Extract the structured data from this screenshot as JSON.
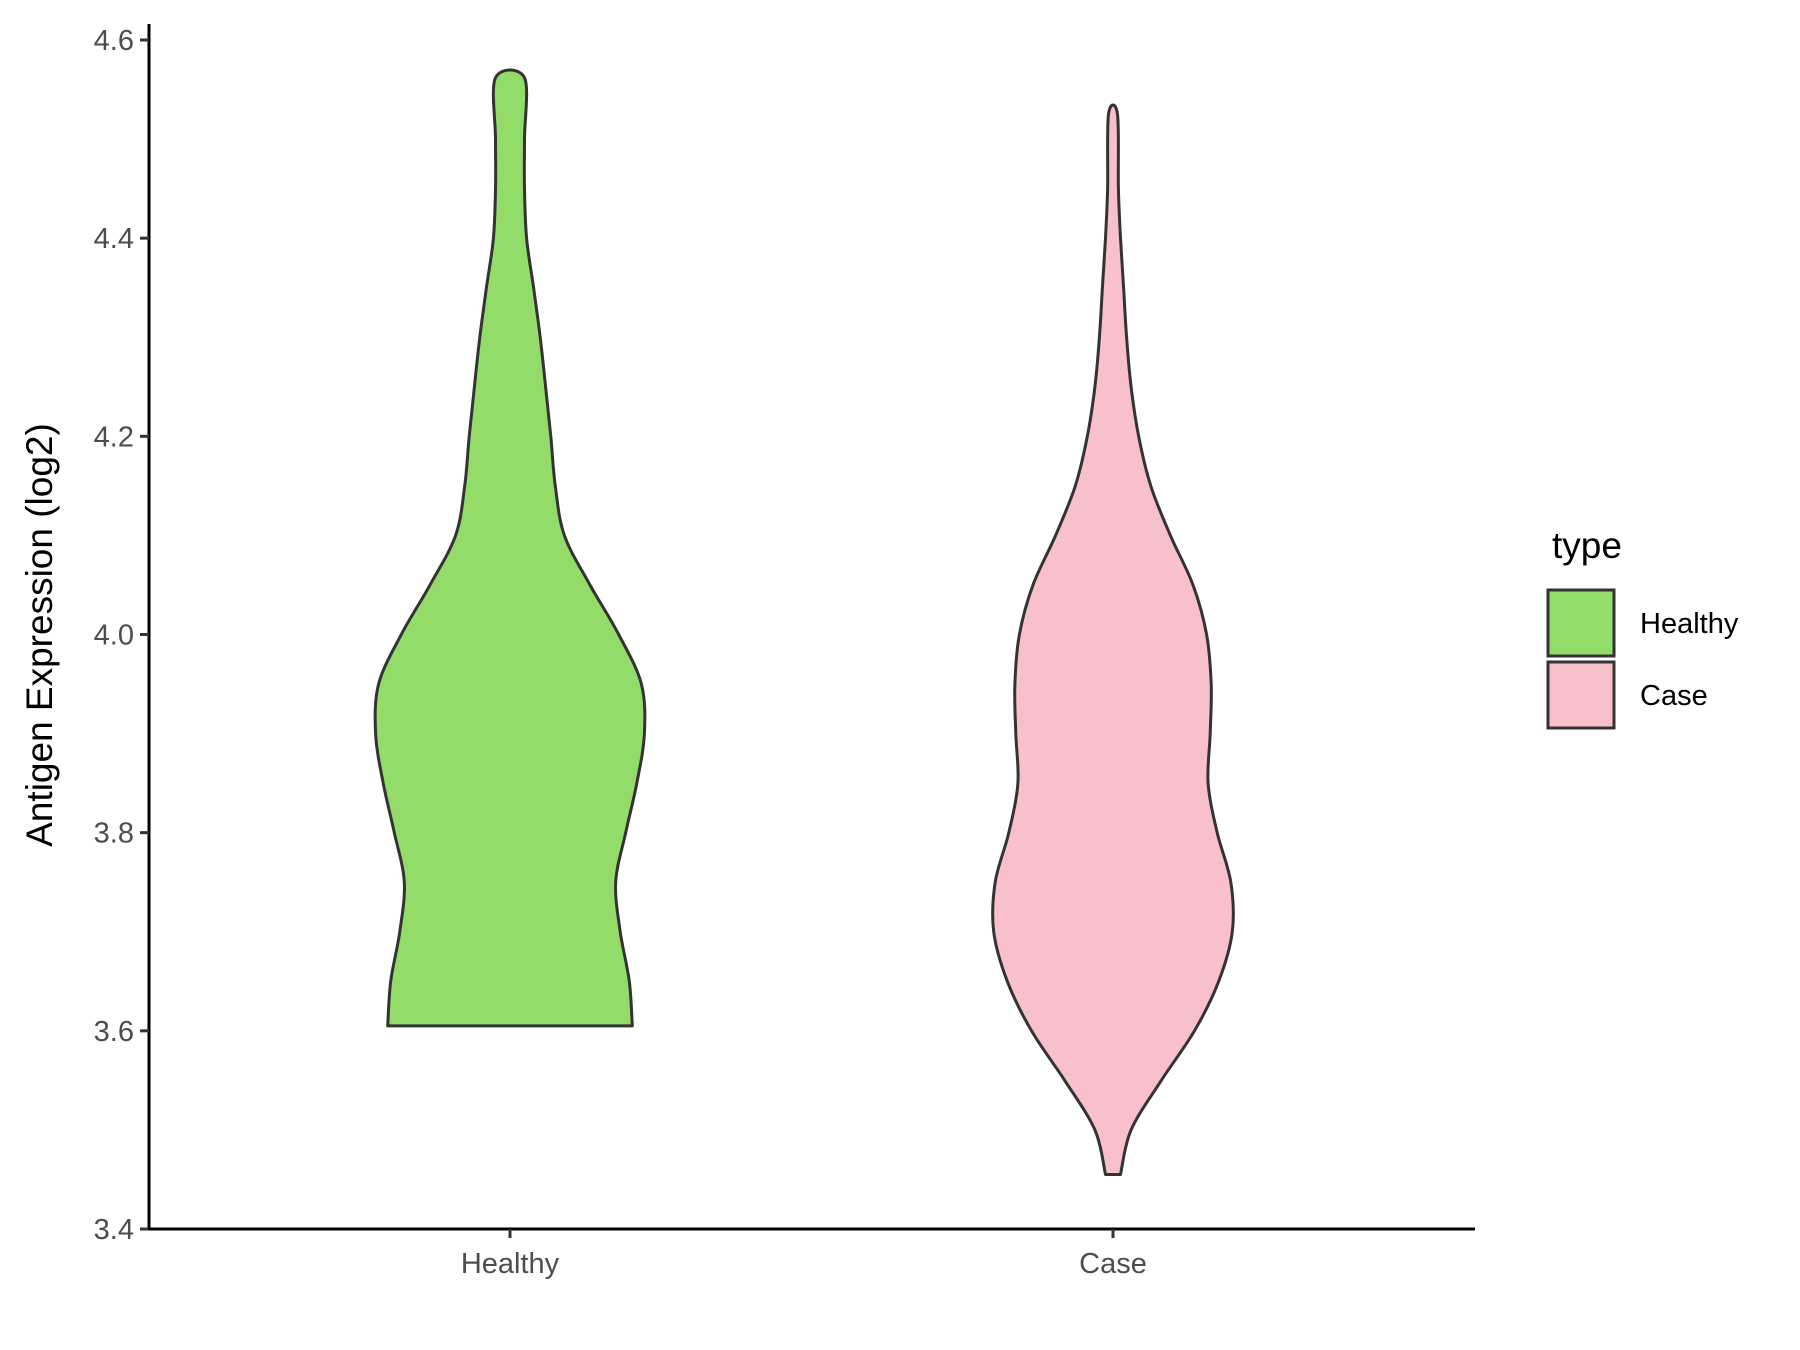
{
  "chart_data": {
    "type": "violin",
    "title": "",
    "xlabel": "",
    "ylabel": "Antigen Expression (log2)",
    "ylim": [
      3.4,
      4.6
    ],
    "yticks": [
      3.4,
      3.6,
      3.8,
      4.0,
      4.2,
      4.4,
      4.6
    ],
    "ytick_labels": [
      "3.4",
      "3.6",
      "3.8",
      "4.0",
      "4.2",
      "4.4",
      "4.6"
    ],
    "categories": [
      "Healthy",
      "Case"
    ],
    "grid": false,
    "legend": {
      "title": "type",
      "position": "right",
      "entries": [
        {
          "name": "Healthy",
          "color": "#93DC6A"
        },
        {
          "name": "Case",
          "color": "#F8C0CB"
        }
      ]
    },
    "series": [
      {
        "name": "Healthy",
        "color": "#93DC6A",
        "min": 3.605,
        "max": 4.562,
        "density_profile": [
          [
            3.605,
            0.405
          ],
          [
            3.65,
            0.395
          ],
          [
            3.7,
            0.365
          ],
          [
            3.75,
            0.35
          ],
          [
            3.8,
            0.383
          ],
          [
            3.85,
            0.42
          ],
          [
            3.9,
            0.445
          ],
          [
            3.95,
            0.435
          ],
          [
            4.0,
            0.36
          ],
          [
            4.05,
            0.265
          ],
          [
            4.1,
            0.18
          ],
          [
            4.15,
            0.15
          ],
          [
            4.2,
            0.135
          ],
          [
            4.25,
            0.118
          ],
          [
            4.3,
            0.1
          ],
          [
            4.35,
            0.078
          ],
          [
            4.4,
            0.055
          ],
          [
            4.45,
            0.048
          ],
          [
            4.5,
            0.048
          ],
          [
            4.562,
            0.048
          ]
        ]
      },
      {
        "name": "Case",
        "color": "#F8C0CB",
        "min": 3.455,
        "max": 4.525,
        "density_profile": [
          [
            3.455,
            0.025
          ],
          [
            3.5,
            0.06
          ],
          [
            3.55,
            0.16
          ],
          [
            3.6,
            0.27
          ],
          [
            3.65,
            0.35
          ],
          [
            3.7,
            0.395
          ],
          [
            3.75,
            0.39
          ],
          [
            3.8,
            0.345
          ],
          [
            3.85,
            0.315
          ],
          [
            3.9,
            0.322
          ],
          [
            3.95,
            0.325
          ],
          [
            4.0,
            0.31
          ],
          [
            4.05,
            0.265
          ],
          [
            4.1,
            0.19
          ],
          [
            4.15,
            0.125
          ],
          [
            4.2,
            0.085
          ],
          [
            4.25,
            0.06
          ],
          [
            4.3,
            0.045
          ],
          [
            4.35,
            0.035
          ],
          [
            4.4,
            0.025
          ],
          [
            4.45,
            0.018
          ],
          [
            4.525,
            0.015
          ]
        ]
      }
    ]
  }
}
